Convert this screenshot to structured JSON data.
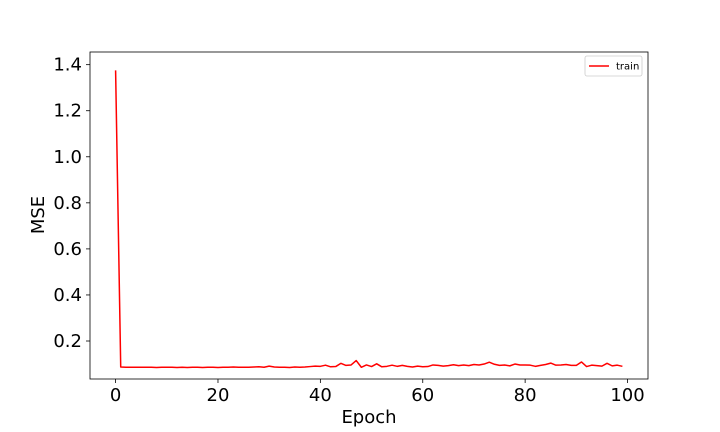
{
  "chart_data": {
    "type": "line",
    "title": "",
    "xlabel": "Epoch",
    "ylabel": "MSE",
    "xlim": [
      -5,
      104
    ],
    "ylim": [
      0.035,
      1.455
    ],
    "xticks": [
      0,
      20,
      40,
      60,
      80,
      100
    ],
    "yticks": [
      0.2,
      0.4,
      0.6,
      0.8,
      1.0,
      1.2,
      1.4
    ],
    "ytick_labels": [
      "0.2",
      "0.4",
      "0.6",
      "0.8",
      "1.0",
      "1.2",
      "1.4"
    ],
    "grid": false,
    "legend": "top-right",
    "series": [
      {
        "name": "train",
        "color": "#ff0000",
        "x": [
          0,
          1,
          2,
          3,
          4,
          5,
          6,
          7,
          8,
          9,
          10,
          11,
          12,
          13,
          14,
          15,
          16,
          17,
          18,
          19,
          20,
          21,
          22,
          23,
          24,
          25,
          26,
          27,
          28,
          29,
          30,
          31,
          32,
          33,
          34,
          35,
          36,
          37,
          38,
          39,
          40,
          41,
          42,
          43,
          44,
          45,
          46,
          47,
          48,
          49,
          50,
          51,
          52,
          53,
          54,
          55,
          56,
          57,
          58,
          59,
          60,
          61,
          62,
          63,
          64,
          65,
          66,
          67,
          68,
          69,
          70,
          71,
          72,
          73,
          74,
          75,
          76,
          77,
          78,
          79,
          80,
          81,
          82,
          83,
          84,
          85,
          86,
          87,
          88,
          89,
          90,
          91,
          92,
          93,
          94,
          95,
          96,
          97,
          98,
          99
        ],
        "y": [
          1.375,
          0.087,
          0.086,
          0.086,
          0.086,
          0.086,
          0.086,
          0.086,
          0.085,
          0.086,
          0.086,
          0.086,
          0.085,
          0.086,
          0.085,
          0.086,
          0.086,
          0.085,
          0.086,
          0.086,
          0.085,
          0.086,
          0.086,
          0.087,
          0.086,
          0.086,
          0.086,
          0.087,
          0.088,
          0.086,
          0.091,
          0.087,
          0.086,
          0.086,
          0.085,
          0.087,
          0.086,
          0.087,
          0.089,
          0.091,
          0.09,
          0.095,
          0.088,
          0.089,
          0.103,
          0.094,
          0.096,
          0.115,
          0.086,
          0.096,
          0.089,
          0.101,
          0.088,
          0.09,
          0.095,
          0.09,
          0.094,
          0.09,
          0.087,
          0.091,
          0.088,
          0.089,
          0.096,
          0.094,
          0.091,
          0.093,
          0.097,
          0.093,
          0.096,
          0.093,
          0.098,
          0.096,
          0.1,
          0.108,
          0.099,
          0.094,
          0.096,
          0.092,
          0.1,
          0.096,
          0.096,
          0.095,
          0.09,
          0.094,
          0.098,
          0.104,
          0.095,
          0.096,
          0.098,
          0.094,
          0.094,
          0.109,
          0.089,
          0.095,
          0.093,
          0.091,
          0.103,
          0.092,
          0.095,
          0.09
        ]
      }
    ]
  }
}
